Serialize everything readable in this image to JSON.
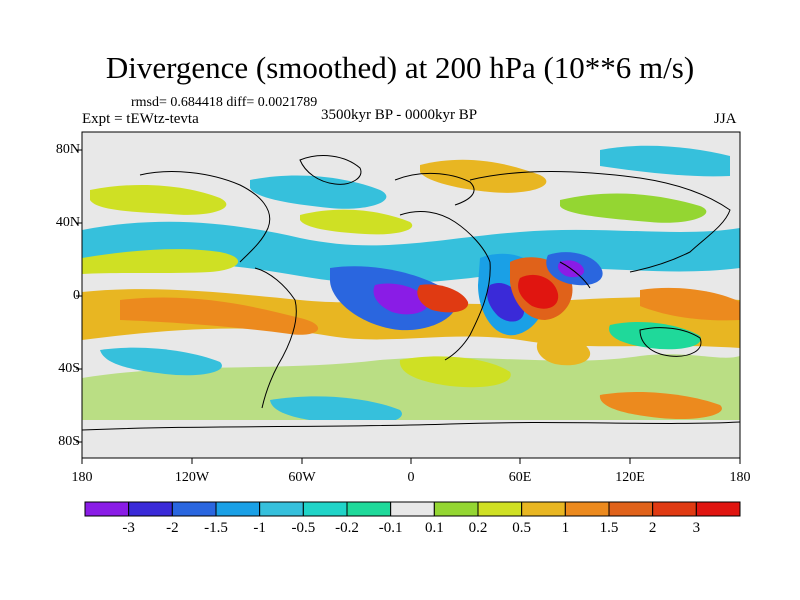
{
  "title": "Divergence (smoothed) at 200 hPa (10**6 m/s)",
  "stats": "rmsd= 0.684418 diff= 0.0021789",
  "experiment": "Expt = tEWtz-tevta",
  "period": "3500kyr BP - 0000kyr BP",
  "season": "JJA",
  "lat_labels": [
    "80N",
    "40N",
    "0",
    "40S",
    "80S"
  ],
  "lon_labels": [
    "180",
    "120W",
    "60W",
    "0",
    "60E",
    "120E",
    "180"
  ],
  "colorbar": {
    "labels": [
      "-3",
      "-2",
      "-1.5",
      "-1",
      "-0.5",
      "-0.2",
      "-0.1",
      "0.1",
      "0.2",
      "0.5",
      "1",
      "1.5",
      "2",
      "3"
    ],
    "colors": [
      "#8a1ce6",
      "#3a2ad8",
      "#2a66df",
      "#1aa0e6",
      "#36c0dc",
      "#20d4c8",
      "#1fd99a",
      "#e8e8e8",
      "#94d632",
      "#cfe024",
      "#e8b622",
      "#ec8a1e",
      "#e0621a",
      "#e03a12",
      "#e01510"
    ]
  }
}
